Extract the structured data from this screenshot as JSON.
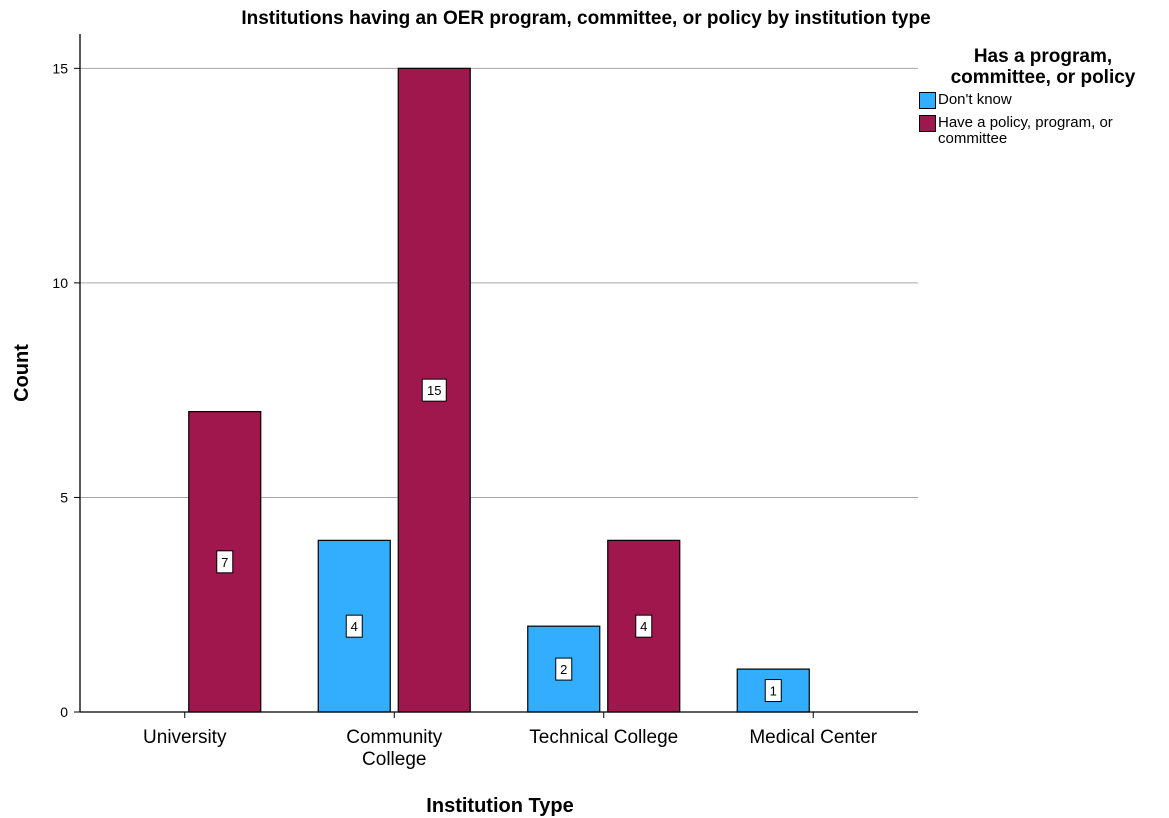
{
  "chart_data": {
    "type": "bar",
    "title": "Institutions having an OER program, committee, or policy by institution type",
    "xlabel": "Institution Type",
    "ylabel": "Count",
    "categories": [
      [
        "University"
      ],
      [
        "Community",
        "College"
      ],
      [
        "Technical College"
      ],
      [
        "Medical Center"
      ]
    ],
    "ylim": [
      0,
      15.8
    ],
    "yticks": [
      0,
      5,
      10,
      15
    ],
    "grid": true,
    "legend": {
      "title": [
        "Has a program,",
        "committee, or policy"
      ],
      "placement": "right"
    },
    "series": [
      {
        "name": "Don't know",
        "color": "#33aeff",
        "values": [
          null,
          4,
          2,
          1
        ]
      },
      {
        "name_lines": [
          "Have a policy, program, or",
          "committee"
        ],
        "name": "Have a policy, program, or committee",
        "color": "#a0174d",
        "values": [
          7,
          15,
          4,
          null
        ]
      }
    ]
  }
}
